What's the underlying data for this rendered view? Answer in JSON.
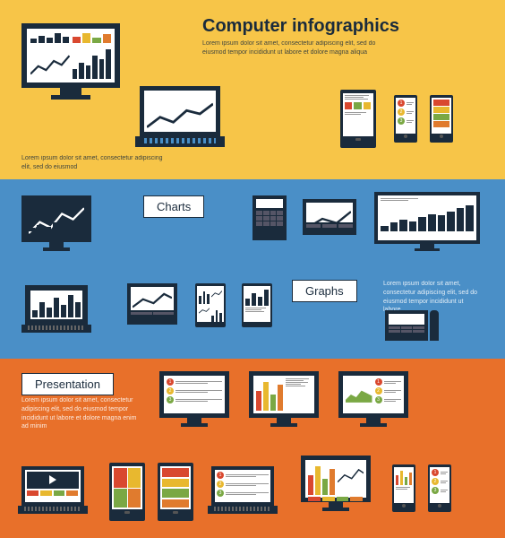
{
  "colors": {
    "yellow": "#f7c548",
    "blue": "#4a8fc7",
    "orange": "#e8702a",
    "dark": "#1a2b3c",
    "red": "#d9482f",
    "green": "#7aa844",
    "yellow2": "#e8b82f",
    "orange2": "#e07b2e"
  },
  "section1": {
    "title": "Computer infographics",
    "lorem_right": "Lorem ipsum dolor sit amet, consectetur adipiscing elit, sed do eiusmod tempor incididunt ut labore et dolore magna aliqua",
    "lorem_left": "Lorem ipsum dolor sit amet, consectetur adipiscing elit, sed do eiusmod",
    "monitor_chart": {
      "tl_bars": [
        0.4,
        0.7,
        0.5,
        0.9,
        0.6
      ],
      "tr_bars": [
        {
          "h": 0.6,
          "c": "#d9482f"
        },
        {
          "h": 0.9,
          "c": "#e8b82f"
        },
        {
          "h": 0.5,
          "c": "#7aa844"
        },
        {
          "h": 0.8,
          "c": "#e07b2e"
        }
      ],
      "bl_line": "M0,20 L6,14 L12,17 L18,10 L24,13 L30,6",
      "br_bars": [
        0.3,
        0.5,
        0.4,
        0.7,
        0.6,
        0.9
      ]
    },
    "laptop_chart": {
      "bars": [
        {
          "h": 0.5,
          "c": "#d9482f"
        },
        {
          "h": 0.9,
          "c": "#e8b82f"
        },
        {
          "h": 0.6,
          "c": "#7aa844"
        },
        {
          "h": 0.8,
          "c": "#e07b2e"
        }
      ],
      "line": "M0,18 L8,12 L16,15 L24,8 L32,10 L40,4"
    },
    "tablet": {
      "colors": [
        "#d9482f",
        "#7aa844",
        "#e8b82f"
      ]
    },
    "phone1": {
      "nums": [
        {
          "n": 1,
          "c": "#d9482f"
        },
        {
          "n": 2,
          "c": "#e8b82f"
        },
        {
          "n": 3,
          "c": "#7aa844"
        }
      ]
    },
    "phone2": {
      "colors": [
        "#d9482f",
        "#e8b82f",
        "#7aa844",
        "#e07b2e"
      ]
    }
  },
  "section2": {
    "label_charts": "Charts",
    "label_graphs": "Graphs",
    "lorem": "Lorem ipsum dolor sit amet, consectetur adipiscing elit, sed do eiusmod tempor incididunt ut labore",
    "devices": {
      "tv1_line": "M0,22 L8,14 L16,18 L24,8 L32,12 L40,4",
      "tv1_bars": [
        0.3,
        0.5,
        0.4,
        0.7,
        0.5,
        0.8,
        0.6
      ],
      "wide_bars": [
        0.2,
        0.3,
        0.4,
        0.35,
        0.5,
        0.6,
        0.55,
        0.7,
        0.8,
        0.9
      ],
      "laptop_bars": [
        0.3,
        0.6,
        0.4,
        0.8,
        0.5,
        0.9,
        0.6
      ],
      "small_line": "M0,16 L10,10 L20,13 L30,5"
    }
  },
  "section3": {
    "label": "Presentation",
    "lorem": "Lorem ipsum dolor sit amet, consectetur adipiscing elit, sed do eiusmod tempor incididunt ut labore et dolore magna enim ad minim",
    "colors_row": [
      "#d9482f",
      "#e8b82f",
      "#7aa844",
      "#e07b2e"
    ],
    "nums": [
      {
        "n": 1,
        "c": "#d9482f"
      },
      {
        "n": 2,
        "c": "#e8b82f"
      },
      {
        "n": 3,
        "c": "#7aa844"
      }
    ],
    "bars": [
      {
        "h": 0.6,
        "c": "#d9482f"
      },
      {
        "h": 0.9,
        "c": "#e8b82f"
      },
      {
        "h": 0.5,
        "c": "#7aa844"
      },
      {
        "h": 0.8,
        "c": "#e07b2e"
      }
    ],
    "area_line": "M0,20 L8,12 L16,16 L24,6 L32,10 L40,14 L40,24 L0,24 Z"
  }
}
